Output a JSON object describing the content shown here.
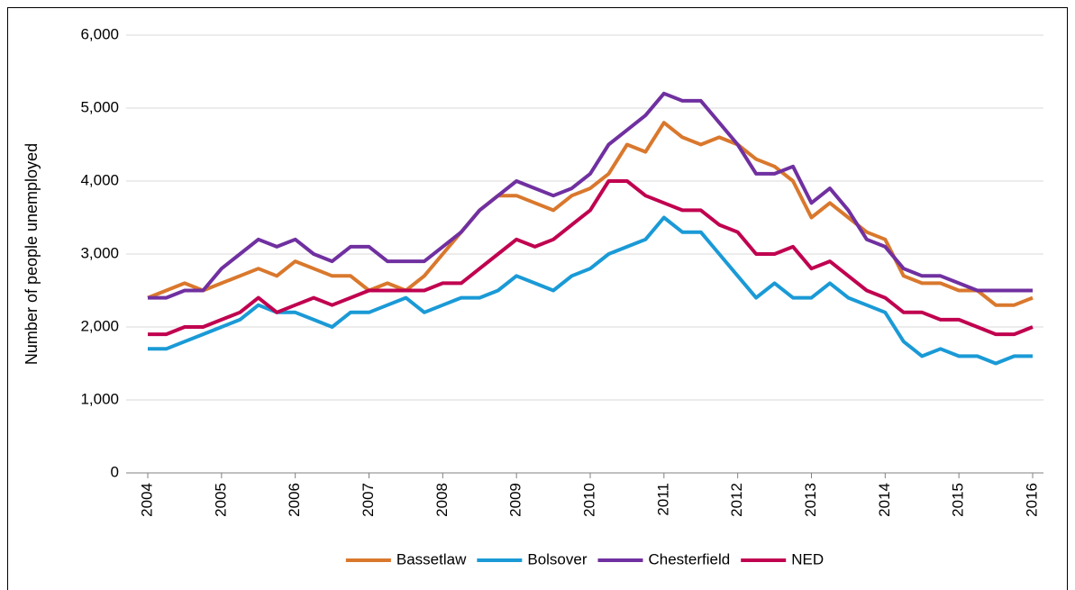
{
  "chart_data": {
    "type": "line",
    "y_label": "Number of people unemployed",
    "categories": [
      "2004",
      null,
      null,
      null,
      "2005",
      null,
      null,
      null,
      "2006",
      null,
      null,
      null,
      "2007",
      null,
      null,
      null,
      "2008",
      null,
      null,
      null,
      "2009",
      null,
      null,
      null,
      "2010",
      null,
      null,
      null,
      "2011",
      null,
      null,
      null,
      "2012",
      null,
      null,
      null,
      "2013",
      null,
      null,
      null,
      "2014",
      null,
      null,
      null,
      "2015",
      null,
      null,
      null,
      "2016"
    ],
    "series": [
      {
        "name": "Bassetlaw",
        "color": "#d9782d",
        "values": [
          2400,
          2500,
          2600,
          2500,
          2600,
          2700,
          2800,
          2700,
          2900,
          2800,
          2700,
          2700,
          2500,
          2600,
          2500,
          2700,
          3000,
          3300,
          3600,
          3800,
          3800,
          3700,
          3600,
          3800,
          3900,
          4100,
          4500,
          4400,
          4800,
          4600,
          4500,
          4600,
          4500,
          4300,
          4200,
          4000,
          3500,
          3700,
          3500,
          3300,
          3200,
          2700,
          2600,
          2600,
          2500,
          2500,
          2300,
          2300,
          2400
        ]
      },
      {
        "name": "Bolsover",
        "color": "#1a9ad6",
        "values": [
          1700,
          1700,
          1800,
          1900,
          2000,
          2100,
          2300,
          2200,
          2200,
          2100,
          2000,
          2200,
          2200,
          2300,
          2400,
          2200,
          2300,
          2400,
          2400,
          2500,
          2700,
          2600,
          2500,
          2700,
          2800,
          3000,
          3100,
          3200,
          3500,
          3300,
          3300,
          3000,
          2700,
          2400,
          2600,
          2400,
          2400,
          2600,
          2400,
          2300,
          2200,
          1800,
          1600,
          1700,
          1600,
          1600,
          1500,
          1600,
          1600
        ]
      },
      {
        "name": "Chesterfield",
        "color": "#7030a0",
        "values": [
          2400,
          2400,
          2500,
          2500,
          2800,
          3000,
          3200,
          3100,
          3200,
          3000,
          2900,
          3100,
          3100,
          2900,
          2900,
          2900,
          3100,
          3300,
          3600,
          3800,
          4000,
          3900,
          3800,
          3900,
          4100,
          4500,
          4700,
          4900,
          5200,
          5100,
          5100,
          4800,
          4500,
          4100,
          4100,
          4200,
          3700,
          3900,
          3600,
          3200,
          3100,
          2800,
          2700,
          2700,
          2600,
          2500,
          2500,
          2500,
          2500
        ]
      },
      {
        "name": "NED",
        "color": "#c0004f",
        "values": [
          1900,
          1900,
          2000,
          2000,
          2100,
          2200,
          2400,
          2200,
          2300,
          2400,
          2300,
          2400,
          2500,
          2500,
          2500,
          2500,
          2600,
          2600,
          2800,
          3000,
          3200,
          3100,
          3200,
          3400,
          3600,
          4000,
          4000,
          3800,
          3700,
          3600,
          3600,
          3400,
          3300,
          3000,
          3000,
          3100,
          2800,
          2900,
          2700,
          2500,
          2400,
          2200,
          2200,
          2100,
          2100,
          2000,
          1900,
          1900,
          2000
        ]
      }
    ],
    "ylim": [
      0,
      6000
    ],
    "yticks": [
      0,
      {
        "value": 1000,
        "label": "1,000"
      },
      {
        "value": 2000,
        "label": "2,000"
      },
      {
        "value": 3000,
        "label": "3,000"
      },
      {
        "value": 4000,
        "label": "4,000"
      },
      {
        "value": 5000,
        "label": "5,000"
      },
      {
        "value": 6000,
        "label": "6,000"
      }
    ],
    "grid": true,
    "legend": "bottom"
  }
}
